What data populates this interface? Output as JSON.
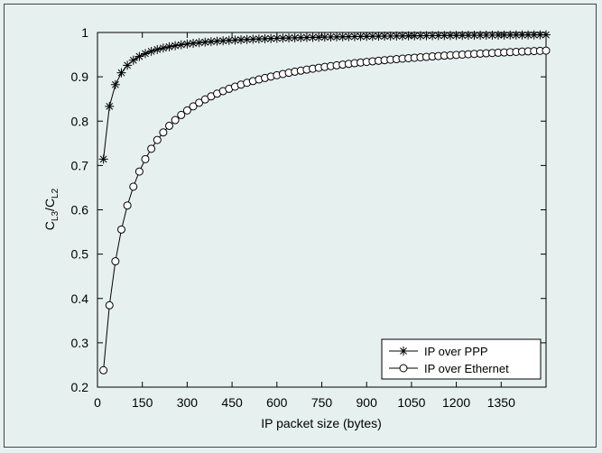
{
  "chart_data": {
    "type": "line",
    "title": "",
    "xlabel": "IP packet size (bytes)",
    "ylabel": {
      "main": "C",
      "sub1": "L3",
      "sep": "/C",
      "sub2": "L2"
    },
    "xlim": [
      0,
      1500
    ],
    "ylim": [
      0.2,
      1.0
    ],
    "xticks": [
      0,
      150,
      300,
      450,
      600,
      750,
      900,
      1050,
      1200,
      1350
    ],
    "xtick_labels": [
      "0",
      "150",
      "300",
      "450",
      "600",
      "750",
      "900",
      "1050",
      "1200",
      "1350"
    ],
    "yticks": [
      0.2,
      0.3,
      0.4,
      0.5,
      0.6,
      0.7,
      0.8,
      0.9,
      1.0
    ],
    "ytick_labels": [
      "0.2",
      "0.3",
      "0.4",
      "0.5",
      "0.6",
      "0.7",
      "0.8",
      "0.9",
      "1"
    ],
    "grid": false,
    "legend_position": "bottom-right",
    "series": [
      {
        "name": "IP over PPP",
        "marker": "asterisk",
        "model": {
          "overhead_bytes": 8
        },
        "x_start": 20,
        "x_end": 1500,
        "x_step": 20
      },
      {
        "name": "IP over Ethernet",
        "marker": "circle",
        "model": {
          "overhead_bytes": 64
        },
        "x_start": 20,
        "x_end": 1500,
        "x_step": 20
      }
    ]
  }
}
